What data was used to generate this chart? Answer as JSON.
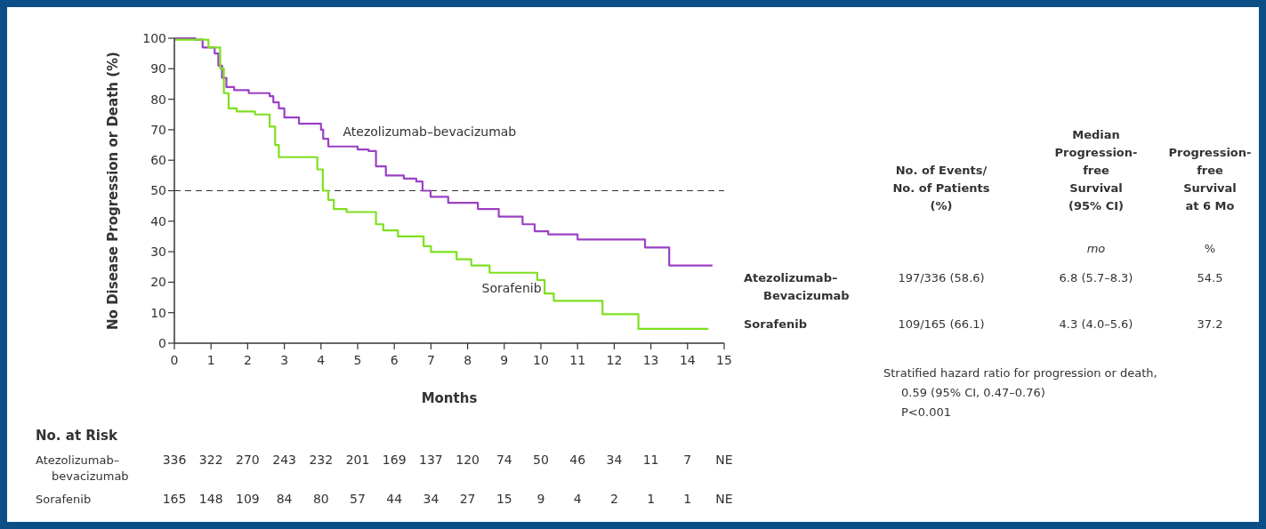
{
  "chart_data": {
    "type": "step",
    "xlabel": "Months",
    "ylabel": "No Disease Progression or Death (%)",
    "xlim": [
      0,
      15
    ],
    "xticks": [
      0,
      1,
      2,
      3,
      4,
      5,
      6,
      7,
      8,
      9,
      10,
      11,
      12,
      13,
      14,
      15
    ],
    "ylim": [
      0,
      100
    ],
    "yticks": [
      0,
      10,
      20,
      30,
      40,
      50,
      60,
      70,
      80,
      90,
      100
    ],
    "grid": false,
    "marker": "none",
    "line_style": "solid",
    "ref_lines": [
      {
        "axis": "y",
        "value": 50,
        "line_style": "dashed",
        "color": "#333333"
      }
    ],
    "series": [
      {
        "name": "Atezolizumab–bevacizumab",
        "color": "#9b40c4",
        "x": [
          0,
          0.57,
          0.77,
          1.1,
          1.2,
          1.3,
          1.42,
          1.63,
          2.03,
          2.6,
          2.7,
          2.85,
          3.0,
          3.4,
          4.0,
          4.06,
          4.2,
          5.0,
          5.3,
          5.5,
          5.77,
          6.26,
          6.6,
          6.77,
          6.99,
          7.47,
          8.28,
          8.85,
          9.5,
          9.83,
          10.2,
          11.0,
          12.84,
          13.5,
          14.68
        ],
        "values": [
          100,
          99.5,
          97,
          95,
          91,
          87,
          84,
          83,
          82,
          81,
          79,
          77,
          74,
          72,
          70,
          67,
          64.5,
          63.5,
          63,
          58,
          55,
          54,
          53,
          50,
          48,
          46,
          44,
          41.5,
          39,
          36.7,
          35.7,
          34,
          31.4,
          25.5,
          25.5
        ]
      },
      {
        "name": "Sorafenib",
        "color": "#7ee01e",
        "x": [
          0,
          0.93,
          1.25,
          1.35,
          1.48,
          1.7,
          2.2,
          2.6,
          2.75,
          2.85,
          3.9,
          4.05,
          4.2,
          4.35,
          4.7,
          5.0,
          5.5,
          5.7,
          6.1,
          6.8,
          7.0,
          7.7,
          8.1,
          8.6,
          9.9,
          10.1,
          10.35,
          11.68,
          12.66,
          14.57
        ],
        "values": [
          99.5,
          97,
          90,
          82,
          77,
          76,
          75,
          71,
          65,
          61,
          57,
          50,
          47,
          44,
          43,
          43,
          39,
          37,
          35,
          31.8,
          29.9,
          27.5,
          25.5,
          23.1,
          20.7,
          16.3,
          13.9,
          9.5,
          4.7,
          4.7
        ]
      }
    ],
    "annotations": [
      "No. at Risk",
      "Atezolizumab–\nbevacizumab",
      "336 322 270 243 232 201 169 137 120 74 50 46 34 11 7 NE",
      "Sorafenib",
      "165 148 109 84 80 57 44 34 27 15 9 4 2 1 1 NE",
      "No. of Events/\nNo. of Patients\n(%)",
      "Median\nProgression-\nfree\nSurvival\n(95% CI)",
      "Progression-\nfree\nSurvival\nat 6 Mo",
      "mo",
      "%",
      "Atezolizumab–\nBevacizumab",
      "197/336 (58.6)",
      "6.8 (5.7–8.3)",
      "54.5",
      "Sorafenib",
      "109/165 (66.1)",
      "4.3 (4.0–5.6)",
      "37.2",
      "Stratified hazard ratio for progression or death,\n0.59 (95% CI, 0.47–0.76)\nP<0.001"
    ]
  }
}
